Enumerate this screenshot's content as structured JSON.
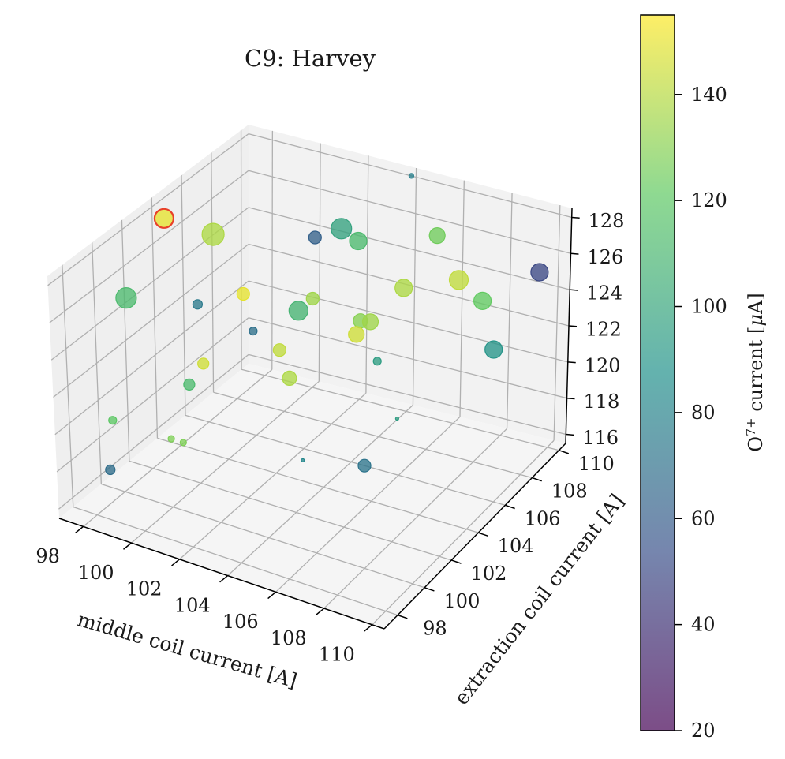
{
  "chart_data": {
    "type": "scatter",
    "title": "C9: Harvey",
    "xlabel": "middle coil current [A]",
    "ylabel": "extraction coil current [A]",
    "zlabel": "",
    "colorbar_label": "O$^{7+}$ current [$\\mu$A]",
    "x_ticks": [
      "98",
      "100",
      "102",
      "104",
      "106",
      "108",
      "110"
    ],
    "y_ticks": [
      "98",
      "100",
      "102",
      "104",
      "106",
      "108",
      "110"
    ],
    "z_ticks": [
      "116",
      "118",
      "120",
      "122",
      "124",
      "126",
      "128"
    ],
    "colorbar_ticks": [
      "20",
      "40",
      "60",
      "80",
      "100",
      "120",
      "140"
    ],
    "xlim": [
      97,
      110.5
    ],
    "ylim": [
      97,
      110.5
    ],
    "zlim": [
      115.5,
      128.5
    ],
    "colorbar_range": [
      20,
      155
    ],
    "colormap": "viridis",
    "grid": true,
    "highlight_color": "#e8402a",
    "points": [
      {
        "x": 97.8,
        "y": 103.5,
        "z": 128.0,
        "c": 150,
        "s": 12,
        "highlight": true
      },
      {
        "x": 99.5,
        "y": 104.0,
        "z": 127.5,
        "c": 138,
        "s": 14
      },
      {
        "x": 97.7,
        "y": 101.0,
        "z": 125.2,
        "c": 112,
        "s": 13
      },
      {
        "x": 98.5,
        "y": 104.5,
        "z": 123.0,
        "c": 75,
        "s": 6
      },
      {
        "x": 99.5,
        "y": 106.0,
        "z": 123.0,
        "c": 150,
        "s": 8
      },
      {
        "x": 98.5,
        "y": 98.5,
        "z": 120.5,
        "c": 120,
        "s": 5
      },
      {
        "x": 99.0,
        "y": 104.0,
        "z": 120.3,
        "c": 145,
        "s": 7
      },
      {
        "x": 99.0,
        "y": 103.0,
        "z": 119.8,
        "c": 112,
        "s": 7
      },
      {
        "x": 100.5,
        "y": 105.0,
        "z": 122.0,
        "c": 70,
        "s": 5
      },
      {
        "x": 101.0,
        "y": 106.0,
        "z": 120.5,
        "c": 142,
        "s": 8
      },
      {
        "x": 99.4,
        "y": 101.0,
        "z": 118.3,
        "c": 128,
        "s": 4
      },
      {
        "x": 99.9,
        "y": 101.0,
        "z": 118.3,
        "c": 128,
        "s": 4
      },
      {
        "x": 97.1,
        "y": 100.5,
        "z": 116.0,
        "c": 68,
        "s": 6
      },
      {
        "x": 101.0,
        "y": 108.5,
        "z": 125.0,
        "c": 62,
        "s": 8
      },
      {
        "x": 101.5,
        "y": 109.5,
        "z": 125.0,
        "c": 98,
        "s": 13
      },
      {
        "x": 102.5,
        "y": 109.0,
        "z": 125.0,
        "c": 112,
        "s": 11
      },
      {
        "x": 101.5,
        "y": 106.5,
        "z": 122.5,
        "c": 108,
        "s": 12
      },
      {
        "x": 101.5,
        "y": 107.5,
        "z": 122.5,
        "c": 135,
        "s": 8
      },
      {
        "x": 103.5,
        "y": 107.5,
        "z": 122.0,
        "c": 130,
        "s": 9
      },
      {
        "x": 102.0,
        "y": 105.0,
        "z": 120.0,
        "c": 138,
        "s": 9
      },
      {
        "x": 104.5,
        "y": 105.5,
        "z": 123.0,
        "c": 145,
        "s": 10
      },
      {
        "x": 104.5,
        "y": 106.5,
        "z": 123.0,
        "c": 135,
        "s": 10
      },
      {
        "x": 105.0,
        "y": 108.0,
        "z": 124.0,
        "c": 138,
        "s": 11
      },
      {
        "x": 104.5,
        "y": 107.0,
        "z": 120.5,
        "c": 95,
        "s": 5
      },
      {
        "x": 103.8,
        "y": 110.5,
        "z": 128.0,
        "c": 78,
        "s": 3
      },
      {
        "x": 105.5,
        "y": 109.5,
        "z": 126.0,
        "c": 125,
        "s": 10
      },
      {
        "x": 107.0,
        "y": 108.5,
        "z": 124.8,
        "c": 142,
        "s": 12
      },
      {
        "x": 108.0,
        "y": 108.5,
        "z": 124.0,
        "c": 122,
        "s": 11
      },
      {
        "x": 109.5,
        "y": 110.0,
        "z": 125.0,
        "c": 50,
        "s": 11
      },
      {
        "x": 108.5,
        "y": 108.5,
        "z": 121.5,
        "c": 90,
        "s": 11
      },
      {
        "x": 106.5,
        "y": 105.0,
        "z": 119.5,
        "c": 95,
        "s": 2
      },
      {
        "x": 106.0,
        "y": 103.5,
        "z": 117.8,
        "c": 72,
        "s": 8
      },
      {
        "x": 104.0,
        "y": 102.5,
        "z": 118.0,
        "c": 82,
        "s": 2
      }
    ]
  }
}
